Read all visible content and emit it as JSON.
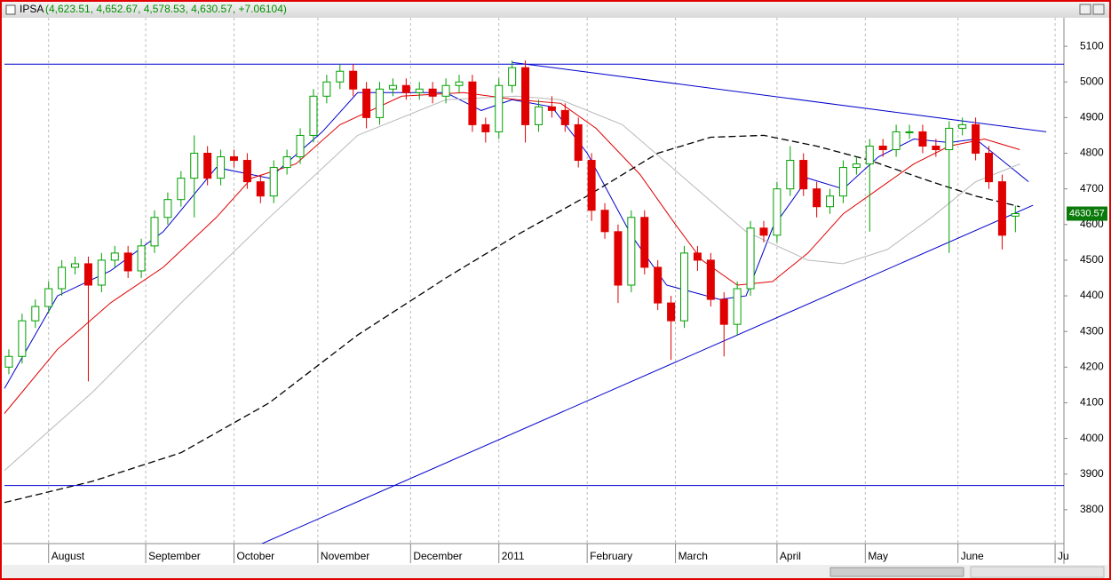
{
  "chart_data": {
    "type": "candlestick",
    "title": "IPSA",
    "subtitle": "(4,623.51, 4,652.67, 4,578.53, 4,630.57, +7.06104)",
    "last_price": 4630.57,
    "up_color": "#00a000",
    "down_color": "#e00000",
    "xlim": [
      0,
      240
    ],
    "xticks": [
      {
        "value": 10,
        "label": "August"
      },
      {
        "value": 32,
        "label": "September"
      },
      {
        "value": 52,
        "label": "October"
      },
      {
        "value": 71,
        "label": "November"
      },
      {
        "value": 92,
        "label": "December"
      },
      {
        "value": 112,
        "label": "2011"
      },
      {
        "value": 132,
        "label": "February"
      },
      {
        "value": 152,
        "label": "March"
      },
      {
        "value": 175,
        "label": "April"
      },
      {
        "value": 195,
        "label": "May"
      },
      {
        "value": 216,
        "label": "June"
      },
      {
        "value": 238,
        "label": "Ju"
      }
    ],
    "ylim": [
      3705,
      5180
    ],
    "yticks": [
      3800,
      3900,
      4000,
      4100,
      4200,
      4300,
      4400,
      4500,
      4600,
      4700,
      4800,
      4900,
      5000,
      5100
    ],
    "grid": true,
    "x": [
      1,
      4,
      7,
      10,
      13,
      16,
      19,
      22,
      25,
      28,
      31,
      34,
      37,
      40,
      43,
      46,
      49,
      52,
      55,
      58,
      61,
      64,
      67,
      70,
      73,
      76,
      79,
      82,
      85,
      88,
      91,
      94,
      97,
      100,
      103,
      106,
      109,
      112,
      115,
      118,
      121,
      124,
      127,
      130,
      133,
      136,
      139,
      142,
      145,
      148,
      151,
      154,
      157,
      160,
      163,
      166,
      169,
      172,
      175,
      178,
      181,
      184,
      187,
      190,
      193,
      196,
      199,
      202,
      205,
      208,
      211,
      214,
      217,
      220,
      223,
      226,
      229
    ],
    "open": [
      4200,
      4230,
      4330,
      4370,
      4420,
      4480,
      4490,
      4430,
      4500,
      4520,
      4470,
      4540,
      4620,
      4670,
      4730,
      4800,
      4730,
      4790,
      4780,
      4720,
      4680,
      4760,
      4790,
      4850,
      4960,
      5000,
      5030,
      4980,
      4900,
      4980,
      4990,
      4970,
      4980,
      4960,
      4990,
      5000,
      4880,
      4860,
      4990,
      5040,
      4880,
      4930,
      4920,
      4880,
      4780,
      4640,
      4580,
      4430,
      4620,
      4480,
      4380,
      4330,
      4520,
      4500,
      4390,
      4320,
      4420,
      4590,
      4570,
      4700,
      4780,
      4700,
      4650,
      4680,
      4760,
      4770,
      4820,
      4810,
      4860,
      4860,
      4820,
      4810,
      4870,
      4880,
      4800,
      4720,
      4623.51
    ],
    "high": [
      4250,
      4350,
      4390,
      4440,
      4500,
      4510,
      4510,
      4520,
      4540,
      4540,
      4560,
      4640,
      4690,
      4750,
      4850,
      4820,
      4810,
      4810,
      4800,
      4740,
      4780,
      4810,
      4870,
      4980,
      5020,
      5050,
      5050,
      5000,
      5000,
      5010,
      5010,
      5000,
      5000,
      5010,
      5020,
      5020,
      4900,
      5010,
      5060,
      5060,
      4950,
      4960,
      4940,
      4900,
      4800,
      4660,
      4600,
      4640,
      4640,
      4500,
      4400,
      4540,
      4540,
      4520,
      4410,
      4440,
      4610,
      4610,
      4720,
      4820,
      4800,
      4720,
      4700,
      4780,
      4790,
      4840,
      4840,
      4880,
      4880,
      4880,
      4840,
      4890,
      4900,
      4900,
      4820,
      4740,
      4652.67
    ],
    "low": [
      4180,
      4210,
      4310,
      4350,
      4400,
      4460,
      4160,
      4410,
      4480,
      4450,
      4450,
      4520,
      4600,
      4650,
      4620,
      4710,
      4710,
      4760,
      4700,
      4660,
      4660,
      4740,
      4770,
      4830,
      4940,
      4980,
      4960,
      4870,
      4880,
      4960,
      4950,
      4950,
      4940,
      4940,
      4970,
      4860,
      4830,
      4840,
      4970,
      4830,
      4860,
      4900,
      4860,
      4760,
      4610,
      4560,
      4380,
      4410,
      4460,
      4360,
      4220,
      4310,
      4470,
      4370,
      4230,
      4290,
      4400,
      4550,
      4550,
      4680,
      4680,
      4620,
      4630,
      4660,
      4740,
      4580,
      4790,
      4790,
      4840,
      4800,
      4790,
      4520,
      4850,
      4780,
      4700,
      4530,
      4578.53
    ],
    "close": [
      4230,
      4330,
      4370,
      4420,
      4480,
      4490,
      4430,
      4500,
      4520,
      4470,
      4540,
      4620,
      4670,
      4730,
      4800,
      4730,
      4790,
      4780,
      4720,
      4680,
      4760,
      4790,
      4850,
      4960,
      5000,
      5030,
      4980,
      4900,
      4980,
      4990,
      4970,
      4980,
      4960,
      4990,
      5000,
      4880,
      4860,
      4990,
      5040,
      4880,
      4930,
      4920,
      4880,
      4780,
      4640,
      4580,
      4430,
      4620,
      4480,
      4380,
      4330,
      4520,
      4500,
      4390,
      4320,
      4420,
      4590,
      4570,
      4700,
      4780,
      4700,
      4650,
      4680,
      4760,
      4770,
      4820,
      4810,
      4860,
      4860,
      4820,
      4810,
      4870,
      4880,
      4800,
      4720,
      4570,
      4630.57
    ],
    "lines": [
      {
        "color": "#0000cc",
        "dash": false,
        "x": [
          0,
          12,
          24,
          36,
          48,
          60,
          72,
          80,
          90,
          100,
          108,
          115,
          124,
          132,
          142,
          150,
          156,
          162,
          168,
          174,
          182,
          190,
          198,
          206,
          214,
          220,
          226,
          232
        ],
        "values": [
          4140,
          4400,
          4470,
          4580,
          4760,
          4730,
          4860,
          4970,
          4970,
          4970,
          4920,
          4950,
          4930,
          4800,
          4570,
          4430,
          4410,
          4390,
          4400,
          4590,
          4730,
          4700,
          4790,
          4840,
          4830,
          4840,
          4780,
          4720
        ]
      },
      {
        "color": "#dd0000",
        "dash": false,
        "x": [
          0,
          12,
          24,
          36,
          48,
          56,
          66,
          76,
          90,
          104,
          116,
          126,
          134,
          144,
          152,
          158,
          166,
          174,
          182,
          190,
          198,
          206,
          214,
          222,
          230
        ],
        "values": [
          4070,
          4250,
          4380,
          4480,
          4620,
          4730,
          4770,
          4880,
          4960,
          4970,
          4950,
          4940,
          4870,
          4740,
          4600,
          4500,
          4430,
          4440,
          4520,
          4630,
          4700,
          4770,
          4820,
          4840,
          4810
        ]
      },
      {
        "color": "#b8b8b8",
        "dash": false,
        "x": [
          0,
          20,
          40,
          60,
          80,
          100,
          116,
          126,
          140,
          154,
          168,
          182,
          190,
          200,
          210,
          220,
          230
        ],
        "values": [
          3910,
          4130,
          4380,
          4620,
          4850,
          4950,
          4960,
          4950,
          4880,
          4730,
          4580,
          4500,
          4490,
          4530,
          4620,
          4720,
          4770
        ]
      },
      {
        "color": "#000000",
        "dash": true,
        "x": [
          0,
          20,
          40,
          60,
          80,
          100,
          116,
          132,
          148,
          160,
          172,
          184,
          196,
          210,
          220,
          230
        ],
        "values": [
          3820,
          3880,
          3960,
          4100,
          4290,
          4450,
          4570,
          4680,
          4800,
          4845,
          4850,
          4820,
          4780,
          4720,
          4680,
          4650
        ]
      },
      {
        "color": "#0000cc",
        "dash": false,
        "x": [
          0,
          240
        ],
        "values": [
          5050,
          5050
        ]
      },
      {
        "color": "#0000cc",
        "dash": false,
        "x": [
          0,
          240
        ],
        "values": [
          3868,
          3868
        ]
      },
      {
        "color": "#0000cc",
        "dash": false,
        "x": [
          115,
          236
        ],
        "values": [
          5055,
          4860
        ]
      },
      {
        "color": "#0000cc",
        "dash": false,
        "x": [
          58,
          233
        ],
        "values": [
          3703,
          4654
        ]
      }
    ]
  }
}
